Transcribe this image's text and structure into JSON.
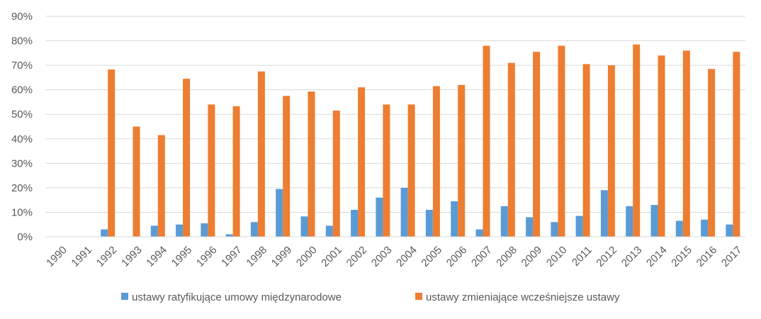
{
  "chart_data": {
    "type": "bar",
    "categories": [
      "1990",
      "1991",
      "1992",
      "1993",
      "1994",
      "1995",
      "1996",
      "1997",
      "1998",
      "1999",
      "2000",
      "2001",
      "2002",
      "2003",
      "2004",
      "2005",
      "2006",
      "2007",
      "2008",
      "2009",
      "2010",
      "2011",
      "2012",
      "2013",
      "2014",
      "2015",
      "2016",
      "2017"
    ],
    "series": [
      {
        "name": "ustawy ratyfikujące umowy międzynarodowe",
        "color": "#5B9BD5",
        "values": [
          0,
          0,
          3.0,
          0,
          4.5,
          5.0,
          5.5,
          1.0,
          6.0,
          19.5,
          8.3,
          4.5,
          11.0,
          16.0,
          20.0,
          11.0,
          14.5,
          3.0,
          12.5,
          8.0,
          6.0,
          8.5,
          19.0,
          12.5,
          13.0,
          6.5,
          7.0,
          5.0
        ]
      },
      {
        "name": "ustawy zmieniające wcześniejsze ustawy",
        "color": "#ED7D31",
        "values": [
          0,
          0,
          68.3,
          45.0,
          41.5,
          64.5,
          54.0,
          53.3,
          67.5,
          57.5,
          59.3,
          51.5,
          61.0,
          54.0,
          54.0,
          61.5,
          62.0,
          78.0,
          71.0,
          75.5,
          78.0,
          70.5,
          70.0,
          78.5,
          74.0,
          76.0,
          68.5,
          75.5
        ]
      }
    ],
    "yticks": [
      "0%",
      "10%",
      "20%",
      "30%",
      "40%",
      "50%",
      "60%",
      "70%",
      "80%",
      "90%"
    ],
    "ylim": [
      0,
      90
    ],
    "grid": true,
    "legend_position": "bottom"
  }
}
